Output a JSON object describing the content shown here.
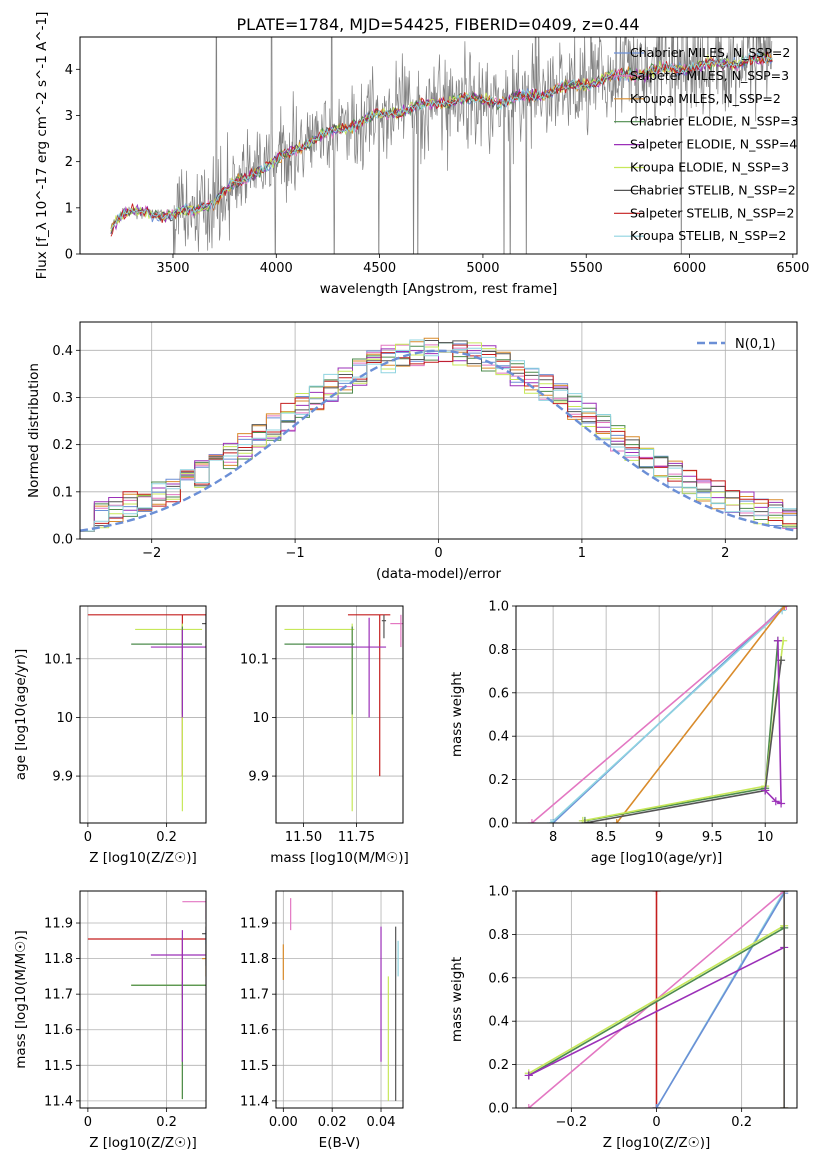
{
  "figure_title": "PLATE=1784, MJD=54425, FIBERID=0409, z=0.44",
  "chart_data": [
    {
      "id": "spectrum",
      "type": "line",
      "xlabel": "wavelength [Angstrom, rest frame]",
      "ylabel": "Flux [f_λ 10^-17 erg cm^-2 s^-1 A^-1]",
      "xlim": [
        3050,
        6520
      ],
      "ylim": [
        0,
        4.7
      ],
      "xticks": [
        3500,
        4000,
        4500,
        5000,
        5500,
        6000,
        6500
      ],
      "yticks": [
        0,
        1,
        2,
        3,
        4
      ],
      "grid": false,
      "legend_position": "top-right",
      "observed_color": "#808080",
      "model_continuum": {
        "x": [
          3200,
          3250,
          3300,
          3400,
          3500,
          3600,
          3700,
          3800,
          3900,
          4000,
          4100,
          4200,
          4300,
          4400,
          4500,
          4600,
          4700,
          4800,
          4900,
          5000,
          5100,
          5200,
          5300,
          5400,
          5500,
          5600,
          5700,
          5800,
          5900,
          6000,
          6100,
          6200,
          6300,
          6400
        ],
        "y": [
          0.6,
          0.85,
          0.9,
          0.88,
          0.85,
          0.95,
          1.15,
          1.5,
          1.8,
          2.0,
          2.3,
          2.5,
          2.7,
          2.85,
          3.0,
          3.1,
          3.2,
          3.3,
          3.35,
          3.35,
          3.3,
          3.4,
          3.5,
          3.6,
          3.7,
          3.8,
          3.9,
          3.95,
          4.0,
          4.05,
          4.1,
          4.15,
          4.2,
          4.2
        ]
      },
      "series": [
        {
          "name": "Chabrier MILES, N_SSP=2",
          "color": "#6b8fd6"
        },
        {
          "name": "Salpeter MILES, N_SSP=3",
          "color": "#e377c2"
        },
        {
          "name": "Kroupa MILES, N_SSP=2",
          "color": "#d98b2b"
        },
        {
          "name": "Chabrier ELODIE, N_SSP=3",
          "color": "#4d8b4d"
        },
        {
          "name": "Salpeter ELODIE, N_SSP=4",
          "color": "#9b30b8"
        },
        {
          "name": "Kroupa ELODIE, N_SSP=3",
          "color": "#c7e85a"
        },
        {
          "name": "Chabrier STELIB, N_SSP=2",
          "color": "#555555"
        },
        {
          "name": "Salpeter STELIB, N_SSP=2",
          "color": "#c41e1e"
        },
        {
          "name": "Kroupa STELIB, N_SSP=2",
          "color": "#8fd4e0"
        }
      ]
    },
    {
      "id": "residuals",
      "type": "step",
      "xlabel": "(data-model)/error",
      "ylabel": "Normed distribution",
      "xlim": [
        -2.5,
        2.5
      ],
      "ylim": [
        0,
        0.46
      ],
      "xticks": [
        -2,
        -1,
        0,
        1,
        2
      ],
      "yticks": [
        0.0,
        0.1,
        0.2,
        0.3,
        0.4
      ],
      "grid": true,
      "legend_position": "top-right",
      "reference": {
        "name": "N(0,1)",
        "color": "#6b8fd6"
      }
    },
    {
      "id": "age_vs_Z",
      "type": "errorbar",
      "xlabel": "Z [log10(Z/Z☉)]",
      "ylabel": "age [log10(age/yr)]",
      "xlim": [
        -0.02,
        0.3
      ],
      "ylim": [
        9.82,
        10.19
      ],
      "xticks": [
        0.0,
        0.2
      ],
      "yticks": [
        9.9,
        10.0,
        10.1
      ],
      "grid": true,
      "points": [
        {
          "x": 0.24,
          "y": 10.175,
          "xerr": [
            0.24,
            0.06
          ],
          "yerr": [
            0.275,
            0.0
          ],
          "color": "#c41e1e"
        },
        {
          "x": 0.24,
          "y": 10.15,
          "xerr": [
            0.12,
            0.05
          ],
          "yerr": [
            0.31,
            0.01
          ],
          "color": "#c7e85a"
        },
        {
          "x": 0.24,
          "y": 10.125,
          "xerr": [
            0.13,
            0.05
          ],
          "yerr": [
            0.12,
            0.03
          ],
          "color": "#4d8b4d"
        },
        {
          "x": 0.24,
          "y": 10.12,
          "xerr": [
            0.08,
            0.06
          ],
          "yerr": [
            0.12,
            0.03
          ],
          "color": "#9b30b8"
        },
        {
          "x": 0.3,
          "y": 10.16,
          "xerr": [
            0.01,
            0.0
          ],
          "yerr": [
            0.04,
            0.015
          ],
          "color": "#555555"
        }
      ]
    },
    {
      "id": "age_vs_mass",
      "type": "errorbar",
      "xlabel": "mass [log10(M/M☉)]",
      "ylabel": "",
      "xlim": [
        11.37,
        11.97
      ],
      "ylim": [
        9.82,
        10.19
      ],
      "xticks": [
        11.5,
        11.75
      ],
      "xticklabels": [
        "11.50",
        "11.75"
      ],
      "yticks": [
        9.9,
        10.0,
        10.1
      ],
      "grid": true,
      "points": [
        {
          "x": 11.86,
          "y": 10.175,
          "xerr": [
            0.15,
            0.05
          ],
          "yerr": [
            0.275,
            0.0
          ],
          "color": "#c41e1e"
        },
        {
          "x": 11.73,
          "y": 10.15,
          "xerr": [
            0.32,
            0.01
          ],
          "yerr": [
            0.31,
            0.01
          ],
          "color": "#c7e85a"
        },
        {
          "x": 11.73,
          "y": 10.125,
          "xerr": [
            0.32,
            0.01
          ],
          "yerr": [
            0.12,
            0.03
          ],
          "color": "#4d8b4d"
        },
        {
          "x": 11.81,
          "y": 10.12,
          "xerr": [
            0.3,
            0.08
          ],
          "yerr": [
            0.12,
            0.05
          ],
          "color": "#9b30b8"
        },
        {
          "x": 11.88,
          "y": 10.165,
          "xerr": [
            0.01,
            0.01
          ],
          "yerr": [
            0.03,
            0.01
          ],
          "color": "#555555"
        },
        {
          "x": 11.96,
          "y": 10.16,
          "xerr": [
            0.05,
            0.02
          ],
          "yerr": [
            0.04,
            0.015
          ],
          "color": "#e377c2"
        }
      ]
    },
    {
      "id": "massweight_vs_age",
      "type": "line",
      "xlabel": "age [log10(age/yr)]",
      "ylabel": "mass weight",
      "xlim": [
        7.65,
        10.3
      ],
      "ylim": [
        0,
        1
      ],
      "xticks": [
        8.0,
        8.5,
        9.0,
        9.5,
        10.0
      ],
      "yticks": [
        0.0,
        0.2,
        0.4,
        0.6,
        0.8,
        1.0
      ],
      "grid": true,
      "series": [
        {
          "color": "#6b8fd6",
          "x": [
            8.0,
            10.18
          ],
          "y": [
            0.0,
            1.0
          ]
        },
        {
          "color": "#8fd4e0",
          "x": [
            7.98,
            10.16
          ],
          "y": [
            0.0,
            0.98
          ]
        },
        {
          "color": "#e377c2",
          "x": [
            7.8,
            10.2
          ],
          "y": [
            0.0,
            1.0
          ]
        },
        {
          "color": "#d98b2b",
          "x": [
            8.6,
            10.18
          ],
          "y": [
            0.0,
            1.0
          ]
        },
        {
          "color": "#4d8b4d",
          "x": [
            8.3,
            10.0,
            10.12
          ],
          "y": [
            0.01,
            0.16,
            0.84
          ]
        },
        {
          "color": "#c7e85a",
          "x": [
            8.28,
            10.0,
            10.17
          ],
          "y": [
            0.01,
            0.17,
            0.84
          ]
        },
        {
          "color": "#555555",
          "x": [
            8.3,
            10.0,
            10.15
          ],
          "y": [
            0.0,
            0.15,
            0.75
          ]
        },
        {
          "color": "#9b30b8",
          "x": [
            10.0,
            10.1,
            10.15,
            10.12
          ],
          "y": [
            0.15,
            0.1,
            0.09,
            0.84
          ]
        }
      ]
    },
    {
      "id": "mass_vs_Z",
      "type": "errorbar",
      "xlabel": "Z [log10(Z/Z☉)]",
      "ylabel": "mass [log10(M/M☉)]",
      "xlim": [
        -0.02,
        0.3
      ],
      "ylim": [
        11.38,
        11.99
      ],
      "xticks": [
        0.0,
        0.2
      ],
      "yticks": [
        11.4,
        11.5,
        11.6,
        11.7,
        11.8,
        11.9
      ],
      "grid": true,
      "points": [
        {
          "x": 0.24,
          "y": 11.855,
          "xerr": [
            0.24,
            0.06
          ],
          "yerr": [
            0.165,
            0.0
          ],
          "color": "#c41e1e"
        },
        {
          "x": 0.24,
          "y": 11.725,
          "xerr": [
            0.13,
            0.06
          ],
          "yerr": [
            0.32,
            0.01
          ],
          "color": "#c7e85a"
        },
        {
          "x": 0.24,
          "y": 11.725,
          "xerr": [
            0.13,
            0.06
          ],
          "yerr": [
            0.32,
            0.01
          ],
          "color": "#4d8b4d"
        },
        {
          "x": 0.24,
          "y": 11.81,
          "xerr": [
            0.08,
            0.06
          ],
          "yerr": [
            0.3,
            0.07
          ],
          "color": "#9b30b8"
        },
        {
          "x": 0.3,
          "y": 11.87,
          "xerr": [
            0.01,
            0.0
          ],
          "yerr": [
            0.03,
            0.02
          ],
          "color": "#555555"
        },
        {
          "x": 0.3,
          "y": 11.96,
          "xerr": [
            0.06,
            0.0
          ],
          "yerr": [
            0.05,
            0.01
          ],
          "color": "#e377c2"
        },
        {
          "x": 0.3,
          "y": 11.8,
          "xerr": [
            0.01,
            0.0
          ],
          "yerr": [
            0.05,
            0.04
          ],
          "color": "#d98b2b"
        },
        {
          "x": 0.3,
          "y": 11.83,
          "xerr": [
            0.0,
            0.0
          ],
          "yerr": [
            0.05,
            0.05
          ],
          "color": "#6b8fd6"
        }
      ]
    },
    {
      "id": "mass_vs_ebv",
      "type": "errorbar",
      "xlabel": "E(B-V)",
      "ylabel": "",
      "xlim": [
        -0.003,
        0.049
      ],
      "ylim": [
        11.38,
        11.99
      ],
      "xticks": [
        0.0,
        0.02,
        0.04
      ],
      "xticklabels": [
        "0.00",
        "0.02",
        "0.04"
      ],
      "yticks": [
        11.4,
        11.5,
        11.6,
        11.7,
        11.8,
        11.9
      ],
      "grid": true,
      "points": [
        {
          "x": 0.0,
          "y": 11.79,
          "xerr": [
            0,
            0
          ],
          "yerr": [
            0.05,
            0.05
          ],
          "color": "#d98b2b"
        },
        {
          "x": 0.003,
          "y": 11.92,
          "xerr": [
            0,
            0
          ],
          "yerr": [
            0.04,
            0.05
          ],
          "color": "#e377c2"
        },
        {
          "x": 0.04,
          "y": 11.7,
          "xerr": [
            0,
            0
          ],
          "yerr": [
            0.19,
            0.19
          ],
          "color": "#9b30b8"
        },
        {
          "x": 0.043,
          "y": 11.58,
          "xerr": [
            0,
            0
          ],
          "yerr": [
            0.18,
            0.17
          ],
          "color": "#c7e85a"
        },
        {
          "x": 0.046,
          "y": 11.64,
          "xerr": [
            0,
            0
          ],
          "yerr": [
            0.24,
            0.25
          ],
          "color": "#555555"
        },
        {
          "x": 0.047,
          "y": 11.8,
          "xerr": [
            0,
            0
          ],
          "yerr": [
            0.05,
            0.05
          ],
          "color": "#8fd4e0"
        }
      ]
    },
    {
      "id": "massweight_vs_Z",
      "type": "line",
      "xlabel": "Z [log10(Z/Z☉)]",
      "ylabel": "mass weight",
      "xlim": [
        -0.33,
        0.33
      ],
      "ylim": [
        0,
        1
      ],
      "xticks": [
        -0.2,
        0.0,
        0.2
      ],
      "yticks": [
        0.0,
        0.2,
        0.4,
        0.6,
        0.8,
        1.0
      ],
      "grid": true,
      "series": [
        {
          "color": "#c41e1e",
          "x": [
            0.0,
            0.0
          ],
          "y": [
            0.0,
            1.0
          ]
        },
        {
          "color": "#8fd4e0",
          "x": [
            0.0,
            0.3
          ],
          "y": [
            0.0,
            1.0
          ]
        },
        {
          "color": "#6b8fd6",
          "x": [
            0.0,
            0.3
          ],
          "y": [
            0.0,
            0.99
          ]
        },
        {
          "color": "#e377c2",
          "x": [
            -0.3,
            0.3
          ],
          "y": [
            0.0,
            1.0
          ]
        },
        {
          "color": "#d98b2b",
          "x": [
            0.3,
            0.3
          ],
          "y": [
            0.0,
            1.0
          ]
        },
        {
          "color": "#c7e85a",
          "x": [
            -0.3,
            0.3
          ],
          "y": [
            0.16,
            0.84
          ]
        },
        {
          "color": "#4d8b4d",
          "x": [
            -0.3,
            0.3
          ],
          "y": [
            0.15,
            0.83
          ]
        },
        {
          "color": "#9b30b8",
          "x": [
            -0.3,
            0.3
          ],
          "y": [
            0.15,
            0.74
          ]
        },
        {
          "color": "#555555",
          "x": [
            0.3,
            0.3
          ],
          "y": [
            0.0,
            1.0
          ]
        }
      ]
    }
  ]
}
